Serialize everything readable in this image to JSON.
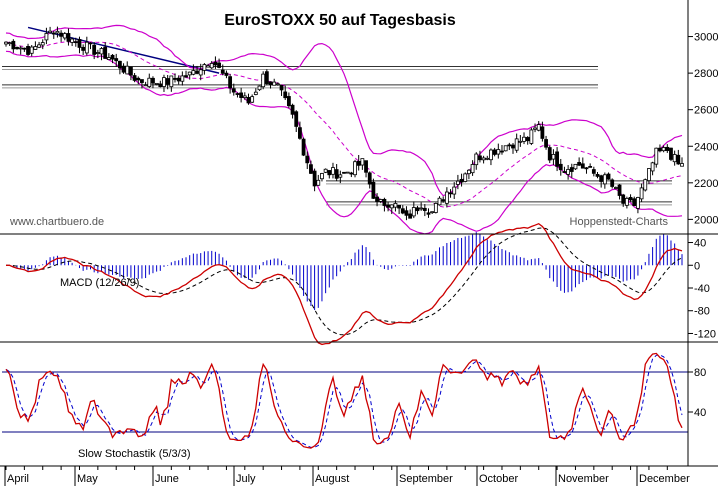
{
  "chart_data": {
    "type": "candlestick-indicators",
    "title": "EuroSTOXX 50 auf Tagesbasis",
    "watermark_left": "www.chartbuero.de",
    "watermark_right": "Hoppenstedt-Charts",
    "months": [
      "April",
      "May",
      "June",
      "July",
      "August",
      "September",
      "October",
      "November",
      "December"
    ],
    "colors": {
      "candle": "#000000",
      "bollinger": "#cc00cc",
      "moving_average": "#cc00cc",
      "macd_line": "#cc0000",
      "signal_line": "#000000",
      "histogram": "#0000cc",
      "stoch_k": "#cc0000",
      "stoch_d": "#0000cc",
      "level_lines": "#000080",
      "support_lines": "#333333"
    },
    "price_panel": {
      "ylim": [
        1920,
        3200
      ],
      "yticks": [
        2000,
        2200,
        2400,
        2600,
        2800,
        3000
      ],
      "bollinger_period": 20,
      "support_resistance": [
        2825,
        2725,
        2200,
        2085
      ],
      "trendline": {
        "from": {
          "day": 6,
          "value": 3050
        },
        "to": {
          "day": 58,
          "value": 2800
        }
      },
      "anchors": [
        {
          "day": 0,
          "close": 2970
        },
        {
          "day": 7,
          "close": 2920
        },
        {
          "day": 13,
          "close": 3040
        },
        {
          "day": 20,
          "close": 2960
        },
        {
          "day": 28,
          "close": 2890
        },
        {
          "day": 36,
          "close": 2760
        },
        {
          "day": 43,
          "close": 2750
        },
        {
          "day": 50,
          "close": 2790
        },
        {
          "day": 56,
          "close": 2880
        },
        {
          "day": 62,
          "close": 2700
        },
        {
          "day": 66,
          "close": 2640
        },
        {
          "day": 70,
          "close": 2780
        },
        {
          "day": 74,
          "close": 2720
        },
        {
          "day": 78,
          "close": 2560
        },
        {
          "day": 81,
          "close": 2380
        },
        {
          "day": 84,
          "close": 2200
        },
        {
          "day": 87,
          "close": 2260
        },
        {
          "day": 92,
          "close": 2250
        },
        {
          "day": 97,
          "close": 2310
        },
        {
          "day": 101,
          "close": 2080
        },
        {
          "day": 105,
          "close": 2100
        },
        {
          "day": 109,
          "close": 2000
        },
        {
          "day": 113,
          "close": 2090
        },
        {
          "day": 116,
          "close": 2040
        },
        {
          "day": 120,
          "close": 2150
        },
        {
          "day": 124,
          "close": 2230
        },
        {
          "day": 128,
          "close": 2340
        },
        {
          "day": 133,
          "close": 2380
        },
        {
          "day": 138,
          "close": 2420
        },
        {
          "day": 142,
          "close": 2440
        },
        {
          "day": 145,
          "close": 2510
        },
        {
          "day": 148,
          "close": 2350
        },
        {
          "day": 152,
          "close": 2280
        },
        {
          "day": 156,
          "close": 2300
        },
        {
          "day": 160,
          "close": 2250
        },
        {
          "day": 164,
          "close": 2210
        },
        {
          "day": 168,
          "close": 2090
        },
        {
          "day": 171,
          "close": 2080
        },
        {
          "day": 174,
          "close": 2200
        },
        {
          "day": 177,
          "close": 2360
        },
        {
          "day": 180,
          "close": 2380
        },
        {
          "day": 183,
          "close": 2300
        }
      ]
    },
    "macd_panel": {
      "label": "MACD (12/26/9)",
      "ylim": [
        -135,
        55
      ],
      "yticks": [
        40,
        0,
        -40,
        -80,
        -120
      ]
    },
    "stoch_panel": {
      "label": "Slow Stochastik (5/3/3)",
      "ylim": [
        0,
        100
      ],
      "yticks": [
        80,
        40
      ],
      "levels": [
        80,
        20
      ]
    }
  }
}
